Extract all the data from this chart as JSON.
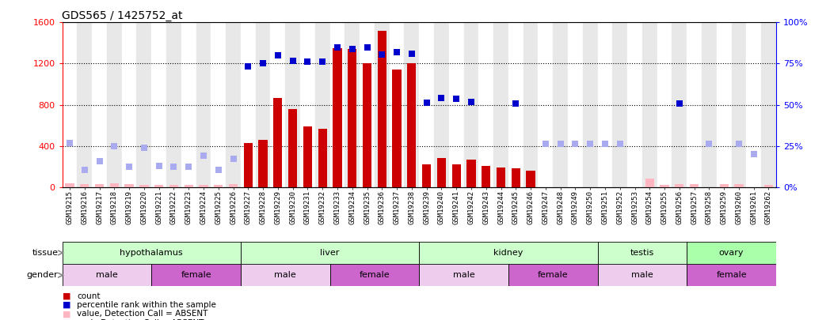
{
  "title": "GDS565 / 1425752_at",
  "samples": [
    "GSM19215",
    "GSM19216",
    "GSM19217",
    "GSM19218",
    "GSM19219",
    "GSM19220",
    "GSM19221",
    "GSM19222",
    "GSM19223",
    "GSM19224",
    "GSM19225",
    "GSM19226",
    "GSM19227",
    "GSM19228",
    "GSM19229",
    "GSM19230",
    "GSM19231",
    "GSM19232",
    "GSM19233",
    "GSM19234",
    "GSM19235",
    "GSM19236",
    "GSM19237",
    "GSM19238",
    "GSM19239",
    "GSM19240",
    "GSM19241",
    "GSM19242",
    "GSM19243",
    "GSM19244",
    "GSM19245",
    "GSM19246",
    "GSM19247",
    "GSM19248",
    "GSM19249",
    "GSM19250",
    "GSM19251",
    "GSM19252",
    "GSM19253",
    "GSM19254",
    "GSM19255",
    "GSM19256",
    "GSM19257",
    "GSM19258",
    "GSM19259",
    "GSM19260",
    "GSM19261",
    "GSM19262"
  ],
  "bar_values": [
    null,
    null,
    null,
    null,
    null,
    null,
    null,
    null,
    null,
    null,
    null,
    null,
    430,
    460,
    870,
    760,
    590,
    570,
    1350,
    1340,
    1200,
    1520,
    1140,
    1200,
    220,
    280,
    220,
    270,
    210,
    190,
    180,
    160,
    null,
    null,
    null,
    null,
    null,
    null,
    null,
    null,
    null,
    null,
    null,
    null,
    null,
    null,
    null,
    null
  ],
  "bar_absent_values": [
    40,
    30,
    30,
    35,
    30,
    25,
    25,
    25,
    25,
    25,
    25,
    30,
    null,
    null,
    null,
    null,
    null,
    null,
    null,
    null,
    null,
    null,
    null,
    null,
    null,
    null,
    null,
    null,
    null,
    null,
    null,
    null,
    null,
    null,
    null,
    null,
    null,
    null,
    null,
    80,
    25,
    30,
    30,
    null,
    30,
    30,
    null,
    25
  ],
  "rank_values": [
    null,
    null,
    null,
    null,
    null,
    null,
    null,
    null,
    null,
    null,
    null,
    null,
    1175,
    1200,
    1280,
    1230,
    1220,
    1220,
    1360,
    1340,
    1355,
    1290,
    1310,
    1295,
    820,
    870,
    855,
    830,
    null,
    null,
    810,
    null,
    null,
    null,
    null,
    null,
    null,
    null,
    null,
    null,
    null,
    810,
    null,
    null,
    null,
    null,
    null,
    null
  ],
  "rank_absent_values": [
    430,
    170,
    255,
    400,
    200,
    385,
    205,
    200,
    200,
    305,
    165,
    275,
    null,
    null,
    null,
    null,
    null,
    null,
    null,
    null,
    null,
    null,
    null,
    null,
    null,
    null,
    null,
    null,
    null,
    null,
    null,
    null,
    420,
    420,
    420,
    420,
    420,
    420,
    null,
    null,
    null,
    null,
    null,
    420,
    null,
    420,
    320,
    null
  ],
  "tissues": [
    {
      "name": "hypothalamus",
      "start": 0,
      "end": 12,
      "color": "#CCFFCC"
    },
    {
      "name": "liver",
      "start": 12,
      "end": 24,
      "color": "#CCFFCC"
    },
    {
      "name": "kidney",
      "start": 24,
      "end": 36,
      "color": "#CCFFCC"
    },
    {
      "name": "testis",
      "start": 36,
      "end": 42,
      "color": "#CCFFCC"
    },
    {
      "name": "ovary",
      "start": 42,
      "end": 48,
      "color": "#AAFFAA"
    }
  ],
  "genders": [
    {
      "name": "male",
      "start": 0,
      "end": 6,
      "color": "#EECCEE"
    },
    {
      "name": "female",
      "start": 6,
      "end": 12,
      "color": "#CC66CC"
    },
    {
      "name": "male",
      "start": 12,
      "end": 18,
      "color": "#EECCEE"
    },
    {
      "name": "female",
      "start": 18,
      "end": 24,
      "color": "#CC66CC"
    },
    {
      "name": "male",
      "start": 24,
      "end": 30,
      "color": "#EECCEE"
    },
    {
      "name": "female",
      "start": 30,
      "end": 36,
      "color": "#CC66CC"
    },
    {
      "name": "male",
      "start": 36,
      "end": 42,
      "color": "#EECCEE"
    },
    {
      "name": "female",
      "start": 42,
      "end": 48,
      "color": "#CC66CC"
    }
  ],
  "ylim_left": [
    0,
    1600
  ],
  "ylim_right": [
    0,
    100
  ],
  "yticks_left": [
    0,
    400,
    800,
    1200,
    1600
  ],
  "yticks_right": [
    0,
    25,
    50,
    75,
    100
  ],
  "bar_color": "#CC0000",
  "bar_absent_color": "#FFB6C1",
  "rank_color": "#0000CC",
  "rank_absent_color": "#AAAAEE",
  "background_color": "#FFFFFF",
  "title_fontsize": 10,
  "tick_fontsize": 6.5,
  "label_fontsize": 8,
  "col_bg_even": "#FFFFFF",
  "col_bg_odd": "#E8E8E8"
}
